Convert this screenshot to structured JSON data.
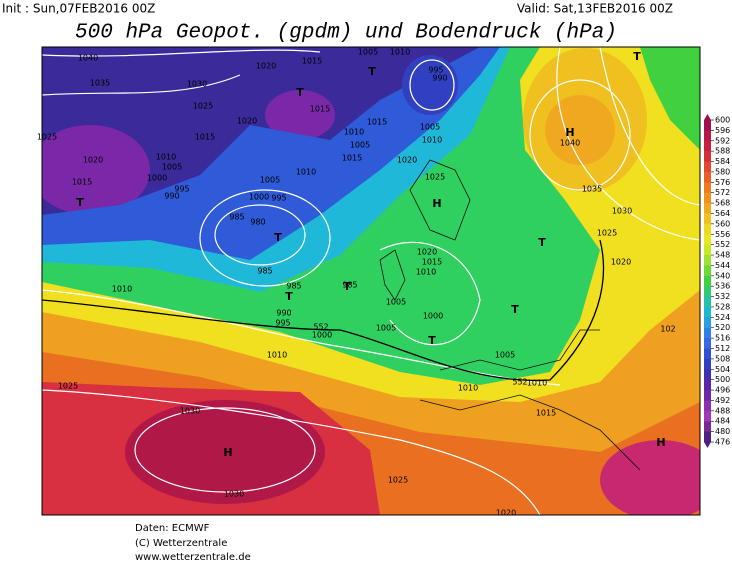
{
  "header": {
    "init": "Init : Sun,07FEB2016 00Z",
    "valid": "Valid: Sat,13FEB2016 00Z",
    "title": "500 hPa Geopot. (gpdm) und Bodendruck (hPa)"
  },
  "map": {
    "labels": [
      "1040",
      "1035",
      "1030",
      "1025",
      "1020",
      "1015",
      "1005",
      "1010",
      "995",
      "990",
      "1015",
      "1015",
      "1010",
      "1005",
      "1015",
      "1020",
      "1025",
      "1020",
      "1015",
      "1010",
      "1005",
      "1000",
      "995",
      "990",
      "1005",
      "1010",
      "1000",
      "995",
      "985",
      "980",
      "985",
      "1020",
      "1025",
      "1005",
      "1010",
      "1015",
      "1035",
      "1030",
      "1025",
      "1020",
      "1040",
      "1010",
      "985",
      "985",
      "990",
      "995",
      "1000",
      "552",
      "1020",
      "1015",
      "1010",
      "1005",
      "1000",
      "1005",
      "1010",
      "1005",
      "1010",
      "552",
      "1010",
      "1015",
      "1025",
      "1030",
      "1030",
      "1025",
      "1020",
      "102"
    ],
    "centers": [
      "T",
      "T",
      "H",
      "H",
      "T",
      "T",
      "T",
      "T",
      "T",
      "H",
      "H",
      "T",
      "T",
      "T"
    ]
  },
  "colorbar": {
    "ticks": [
      600,
      596,
      592,
      588,
      584,
      580,
      576,
      572,
      568,
      564,
      560,
      556,
      552,
      548,
      544,
      540,
      536,
      532,
      528,
      524,
      520,
      516,
      512,
      508,
      504,
      500,
      496,
      492,
      488,
      484,
      480,
      476
    ],
    "colors": [
      "#a01050",
      "#b81848",
      "#c82040",
      "#d83038",
      "#e04830",
      "#e86028",
      "#f07820",
      "#f09020",
      "#f0a820",
      "#f0c020",
      "#f0d820",
      "#e8e820",
      "#c8e828",
      "#a0e030",
      "#70d838",
      "#40d040",
      "#30c870",
      "#28c0a8",
      "#20b8d0",
      "#28a0e0",
      "#3080e8",
      "#3868e0",
      "#3050d0",
      "#3040c0",
      "#4030b0",
      "#5828a8",
      "#7028a8",
      "#8830b0",
      "#a038b8",
      "#7a2898",
      "#502080"
    ]
  },
  "footer": [
    "Daten: ECMWF",
    "(C) Wetterzentrale",
    "www.wetterzentrale.de"
  ]
}
